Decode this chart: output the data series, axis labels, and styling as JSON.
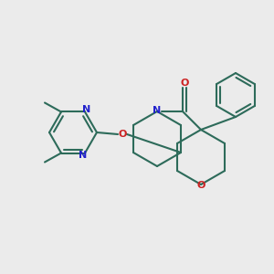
{
  "background_color": "#ebebeb",
  "bond_color": "#2d6b5a",
  "N_color": "#2222cc",
  "O_color": "#cc2222",
  "line_width": 1.5,
  "figsize": [
    3.0,
    3.0
  ],
  "dpi": 100,
  "xlim": [
    0,
    300
  ],
  "ylim": [
    0,
    300
  ]
}
